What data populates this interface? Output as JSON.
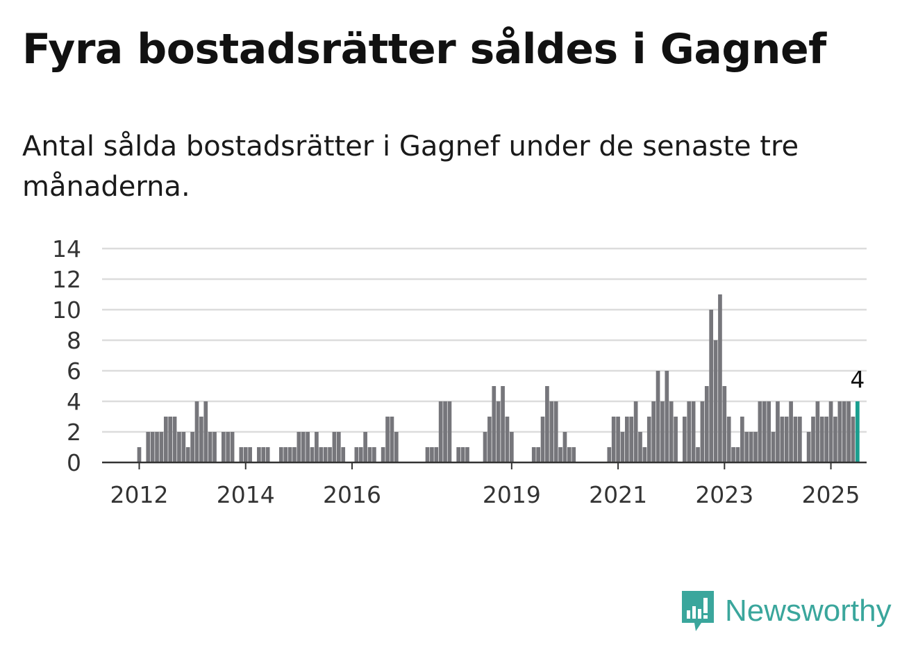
{
  "header": {
    "title": "Fyra bostadsrätter såldes i Gagnef",
    "subtitle": "Antal sålda bostadsrätter i Gagnef under de senaste tre månaderna."
  },
  "brand": {
    "name": "Newsworthy",
    "color": "#3aa69c"
  },
  "chart_data": {
    "type": "bar",
    "title": "",
    "xlabel": "",
    "ylabel": "",
    "ylim": [
      0,
      14
    ],
    "yticks": [
      0,
      2,
      4,
      6,
      8,
      10,
      12,
      14
    ],
    "grid": true,
    "x_tick_labels": [
      "2012",
      "2014",
      "2016",
      "2019",
      "2021",
      "2023",
      "2025"
    ],
    "start": "2012-01",
    "interval": "quarter (rolling three months), monthly steps",
    "bar_color": "#76767b",
    "highlight_color": "#1a9e8f",
    "highlight_label": "4",
    "values": [
      1,
      0,
      2,
      2,
      2,
      2,
      3,
      3,
      3,
      2,
      2,
      1,
      2,
      4,
      3,
      4,
      2,
      2,
      0,
      2,
      2,
      2,
      0,
      1,
      1,
      1,
      0,
      1,
      1,
      1,
      0,
      0,
      1,
      1,
      1,
      1,
      2,
      2,
      2,
      1,
      2,
      1,
      1,
      1,
      2,
      2,
      1,
      0,
      0,
      1,
      1,
      2,
      1,
      1,
      0,
      1,
      3,
      3,
      2,
      0,
      0,
      0,
      0,
      0,
      0,
      1,
      1,
      1,
      4,
      4,
      4,
      0,
      1,
      1,
      1,
      0,
      0,
      0,
      2,
      3,
      5,
      4,
      5,
      3,
      2,
      0,
      0,
      0,
      0,
      1,
      1,
      3,
      5,
      4,
      4,
      1,
      2,
      1,
      1,
      0,
      0,
      0,
      0,
      0,
      0,
      0,
      1,
      3,
      3,
      2,
      3,
      3,
      4,
      2,
      1,
      3,
      4,
      6,
      4,
      6,
      4,
      3,
      0,
      3,
      4,
      4,
      1,
      4,
      5,
      10,
      8,
      11,
      5,
      3,
      1,
      1,
      3,
      2,
      2,
      2,
      4,
      4,
      4,
      2,
      4,
      3,
      3,
      4,
      3,
      3,
      0,
      2,
      3,
      4,
      3,
      3,
      4,
      3,
      4,
      4,
      4,
      3,
      4
    ]
  }
}
